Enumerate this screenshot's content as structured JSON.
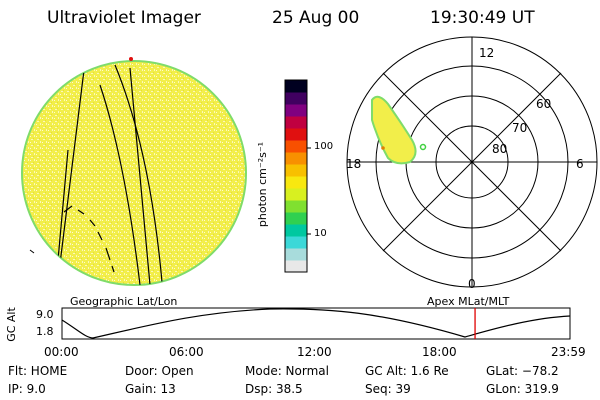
{
  "header": {
    "title": "Ultraviolet Imager",
    "date": "25 Aug 00",
    "time": "19:30:49  UT"
  },
  "colorbar": {
    "unit_label": "photon cm⁻²s⁻¹",
    "ticks": [
      "100",
      "10"
    ],
    "colors": [
      "#e8e8e8",
      "#a8dcdc",
      "#3cd8d8",
      "#00c8a0",
      "#30d050",
      "#80e030",
      "#d8f020",
      "#f8e810",
      "#f8c000",
      "#f89000",
      "#f85000",
      "#e01010",
      "#c00040",
      "#800080",
      "#400060",
      "#000020"
    ]
  },
  "geographic": {
    "label": "Geographic Lat/Lon",
    "fill_color": "#f2ee4a",
    "edge_color": "#7fdc6a"
  },
  "polar": {
    "label": "Apex MLat/MLT",
    "mlt_labels": {
      "top": "12",
      "left": "18",
      "right": "6",
      "bottom": "0"
    },
    "lat_labels": [
      "60",
      "70",
      "80"
    ]
  },
  "timeline": {
    "axis_label": "GC Alt",
    "y_ticks": [
      "9.0",
      "1.8"
    ],
    "x_ticks": [
      "00:00",
      "06:00",
      "12:00",
      "18:00",
      "23:59"
    ],
    "current_time_fraction": 0.8131,
    "marker_color": "#e00000"
  },
  "status": {
    "flt": "Flt: HOME",
    "ip": "IP:  9.0",
    "door": "Door: Open",
    "gain": "Gain: 13",
    "mode": "Mode: Normal",
    "dsp": "Dsp:    38.5",
    "gc_alt": "GC Alt: 1.6 Re",
    "seq": "Seq: 39",
    "glat": "GLat: −78.2",
    "glon": "GLon: 319.9"
  }
}
